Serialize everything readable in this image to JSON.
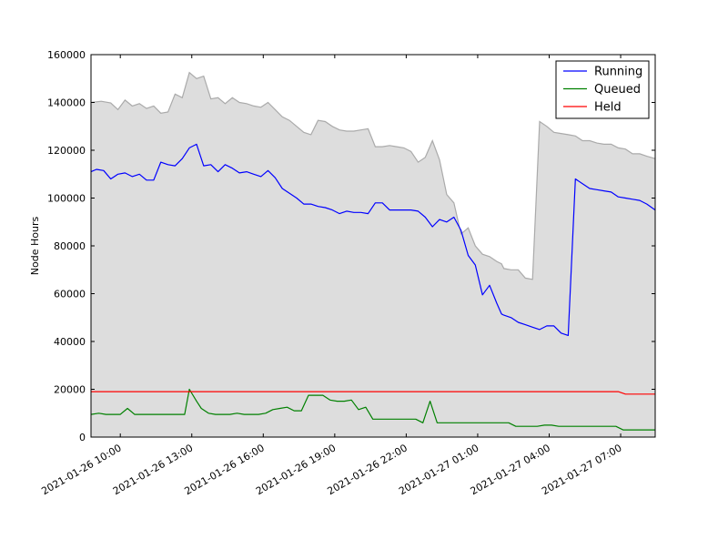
{
  "chart_data": {
    "type": "line",
    "title": "",
    "xlabel": "",
    "ylabel": "Node Hours",
    "ylim": [
      0,
      160000
    ],
    "xlim_hours": [
      8.77,
      32.45
    ],
    "y_ticks": [
      0,
      20000,
      40000,
      60000,
      80000,
      100000,
      120000,
      140000,
      160000
    ],
    "y_tick_labels": [
      "0",
      "20000",
      "40000",
      "60000",
      "80000",
      "100000",
      "120000",
      "140000",
      "160000"
    ],
    "x_ticks_hours": [
      10,
      13,
      16,
      19,
      22,
      25,
      28,
      31
    ],
    "x_tick_labels": [
      "2021-01-26 10:00",
      "2021-01-26 13:00",
      "2021-01-26 16:00",
      "2021-01-26 19:00",
      "2021-01-26 22:00",
      "2021-01-27 01:00",
      "2021-01-27 04:00",
      "2021-01-27 07:00"
    ],
    "legend": {
      "placement": "top-right"
    },
    "total_area": {
      "fill": "#dddddd",
      "stroke": "#aaaaaa",
      "x": [
        8.77,
        9.2,
        9.6,
        9.9,
        10.2,
        10.5,
        10.8,
        11.1,
        11.4,
        11.7,
        12.0,
        12.3,
        12.6,
        12.9,
        13.2,
        13.5,
        13.8,
        14.1,
        14.4,
        14.7,
        15.0,
        15.3,
        15.6,
        15.9,
        16.2,
        16.5,
        16.8,
        17.1,
        17.4,
        17.7,
        18.0,
        18.3,
        18.6,
        18.9,
        19.2,
        19.5,
        19.8,
        20.1,
        20.4,
        20.7,
        21.0,
        21.3,
        21.6,
        21.9,
        22.2,
        22.5,
        22.8,
        23.1,
        23.4,
        23.7,
        24.0,
        24.3,
        24.6,
        24.9,
        25.2,
        25.5,
        25.8,
        26.0,
        26.1,
        26.4,
        26.7,
        27.0,
        27.3,
        27.6,
        27.9,
        28.2,
        28.5,
        28.8,
        29.1,
        29.4,
        29.7,
        30.0,
        30.3,
        30.6,
        30.9,
        31.2,
        31.5,
        31.8,
        32.1,
        32.45
      ],
      "y": [
        140000,
        140500,
        139800,
        137000,
        141000,
        138500,
        139500,
        137500,
        138500,
        135500,
        136000,
        143500,
        142000,
        152500,
        150000,
        151000,
        141500,
        142000,
        139500,
        142000,
        140000,
        139500,
        138500,
        138000,
        140000,
        137000,
        134000,
        132500,
        130000,
        127500,
        126500,
        132500,
        132000,
        130000,
        128500,
        128000,
        128000,
        128500,
        129000,
        121500,
        121500,
        122000,
        121500,
        121000,
        119500,
        115000,
        117000,
        124000,
        116000,
        101500,
        98000,
        85000,
        87500,
        80000,
        76500,
        75500,
        73500,
        72500,
        70500,
        70000,
        70000,
        66500,
        66000,
        132000,
        130000,
        127500,
        127000,
        126500,
        126000,
        124000,
        124000,
        123000,
        122500,
        122500,
        121000,
        120500,
        118500,
        118500,
        117500,
        116500
      ]
    },
    "series": [
      {
        "name": "Running",
        "color": "#0000ff",
        "x": [
          8.77,
          9.0,
          9.3,
          9.6,
          9.9,
          10.2,
          10.5,
          10.8,
          11.1,
          11.4,
          11.7,
          12.0,
          12.3,
          12.6,
          12.9,
          13.2,
          13.5,
          13.8,
          14.1,
          14.4,
          14.7,
          15.0,
          15.3,
          15.6,
          15.9,
          16.2,
          16.5,
          16.8,
          17.1,
          17.4,
          17.7,
          18.0,
          18.3,
          18.6,
          18.9,
          19.2,
          19.5,
          19.8,
          20.1,
          20.4,
          20.7,
          21.0,
          21.3,
          21.6,
          21.9,
          22.2,
          22.5,
          22.8,
          23.1,
          23.4,
          23.7,
          24.0,
          24.3,
          24.6,
          24.9,
          25.2,
          25.5,
          25.8,
          26.0,
          26.1,
          26.4,
          26.7,
          27.0,
          27.3,
          27.6,
          27.9,
          28.2,
          28.5,
          28.8,
          29.1,
          29.4,
          29.7,
          30.0,
          30.3,
          30.6,
          30.9,
          31.2,
          31.5,
          31.8,
          32.1,
          32.45
        ],
        "y": [
          111000,
          112000,
          111500,
          108000,
          110000,
          110500,
          109000,
          110000,
          107500,
          107500,
          115000,
          114000,
          113500,
          116500,
          121000,
          122500,
          113500,
          114000,
          111000,
          114000,
          112500,
          110500,
          111000,
          110000,
          109000,
          111500,
          108500,
          104000,
          102000,
          100000,
          97500,
          97500,
          96500,
          96000,
          95000,
          93500,
          94500,
          94000,
          94000,
          93500,
          98000,
          98000,
          95000,
          95000,
          95000,
          95000,
          94500,
          92000,
          88000,
          91000,
          90000,
          92000,
          86500,
          76000,
          72000,
          59500,
          63500,
          56000,
          51500,
          51000,
          50000,
          48000,
          47000,
          46000,
          45000,
          46500,
          46500,
          43500,
          42500,
          108000,
          106000,
          104000,
          103500,
          103000,
          102500,
          100500,
          100000,
          99500,
          99000,
          97500,
          95000
        ]
      },
      {
        "name": "Queued",
        "color": "#008000",
        "x": [
          8.77,
          9.1,
          9.4,
          9.7,
          10.0,
          10.3,
          10.6,
          10.9,
          11.2,
          11.5,
          11.8,
          12.1,
          12.4,
          12.7,
          12.9,
          13.2,
          13.4,
          13.7,
          14.0,
          14.3,
          14.6,
          14.9,
          15.2,
          15.5,
          15.8,
          16.1,
          16.4,
          16.7,
          17.0,
          17.3,
          17.6,
          17.9,
          18.2,
          18.5,
          18.8,
          19.1,
          19.4,
          19.7,
          20.0,
          20.3,
          20.6,
          20.9,
          21.2,
          21.5,
          21.8,
          22.1,
          22.4,
          22.7,
          23.0,
          23.3,
          23.6,
          23.9,
          24.2,
          24.5,
          24.8,
          25.1,
          25.4,
          25.7,
          26.0,
          26.3,
          26.6,
          26.9,
          27.2,
          27.5,
          27.8,
          28.1,
          28.4,
          28.7,
          29.0,
          29.3,
          29.6,
          29.9,
          30.2,
          30.5,
          30.8,
          31.1,
          31.4,
          31.7,
          32.0,
          32.45
        ],
        "y": [
          9500,
          10000,
          9500,
          9500,
          9500,
          12000,
          9500,
          9500,
          9500,
          9500,
          9500,
          9500,
          9500,
          9500,
          20000,
          15000,
          12000,
          10000,
          9500,
          9500,
          9500,
          10000,
          9500,
          9500,
          9500,
          10000,
          11500,
          12000,
          12500,
          11000,
          11000,
          17500,
          17500,
          17500,
          15500,
          15000,
          15000,
          15500,
          11500,
          12500,
          7500,
          7500,
          7500,
          7500,
          7500,
          7500,
          7500,
          6000,
          15000,
          6000,
          6000,
          6000,
          6000,
          6000,
          6000,
          6000,
          6000,
          6000,
          6000,
          6000,
          4500,
          4500,
          4500,
          4500,
          5000,
          5000,
          4500,
          4500,
          4500,
          4500,
          4500,
          4500,
          4500,
          4500,
          4500,
          3000,
          3000,
          3000,
          3000,
          3000
        ]
      },
      {
        "name": "Held",
        "color": "#ff0000",
        "x": [
          8.77,
          21.3,
          21.6,
          21.9,
          22.2,
          22.5,
          22.8,
          23.1,
          23.4,
          23.7,
          24.0,
          24.3,
          24.6,
          30.9,
          31.2,
          31.5,
          31.8,
          32.1,
          32.45
        ],
        "y": [
          19000,
          19000,
          19000,
          19000,
          19000,
          19000,
          19000,
          19000,
          19000,
          19000,
          19000,
          19000,
          19000,
          19000,
          18000,
          18000,
          18000,
          18000,
          18000
        ]
      }
    ]
  }
}
